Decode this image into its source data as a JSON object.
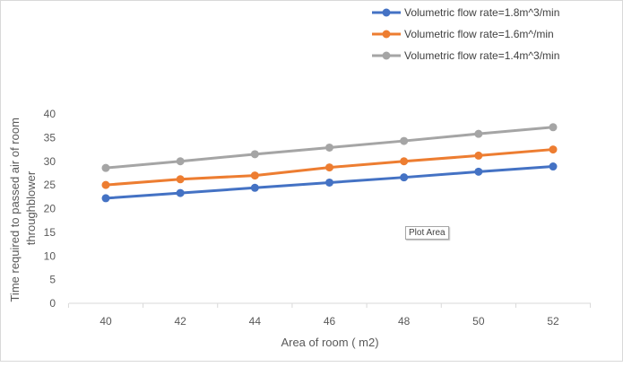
{
  "chart_data": {
    "type": "line",
    "title": "",
    "xlabel": "Area of room ( m2)",
    "ylabel_lines": [
      "Time required to passed  air of room",
      "throughblower"
    ],
    "categories": [
      40,
      42,
      44,
      46,
      48,
      50,
      52
    ],
    "ylim": [
      0,
      40
    ],
    "y_ticks": [
      0,
      5,
      10,
      15,
      20,
      25,
      30,
      35,
      40
    ],
    "grid": false,
    "legend_position": "top-right",
    "series": [
      {
        "name": "Volumetric flow rate=1.8m^3/min",
        "color": "#4472c4",
        "values": [
          22.2,
          23.3,
          24.4,
          25.5,
          26.6,
          27.8,
          28.9
        ]
      },
      {
        "name": "Volumetric flow rate=1.6m^/min",
        "color": "#ed7d31",
        "values": [
          25.0,
          26.2,
          27.0,
          28.7,
          30.0,
          31.2,
          32.5
        ]
      },
      {
        "name": "Volumetric flow rate=1.4m^3/min",
        "color": "#a5a5a5",
        "values": [
          28.6,
          30.0,
          31.5,
          32.9,
          34.3,
          35.8,
          37.2
        ]
      }
    ]
  },
  "tooltip": {
    "label": "Plot Area"
  }
}
